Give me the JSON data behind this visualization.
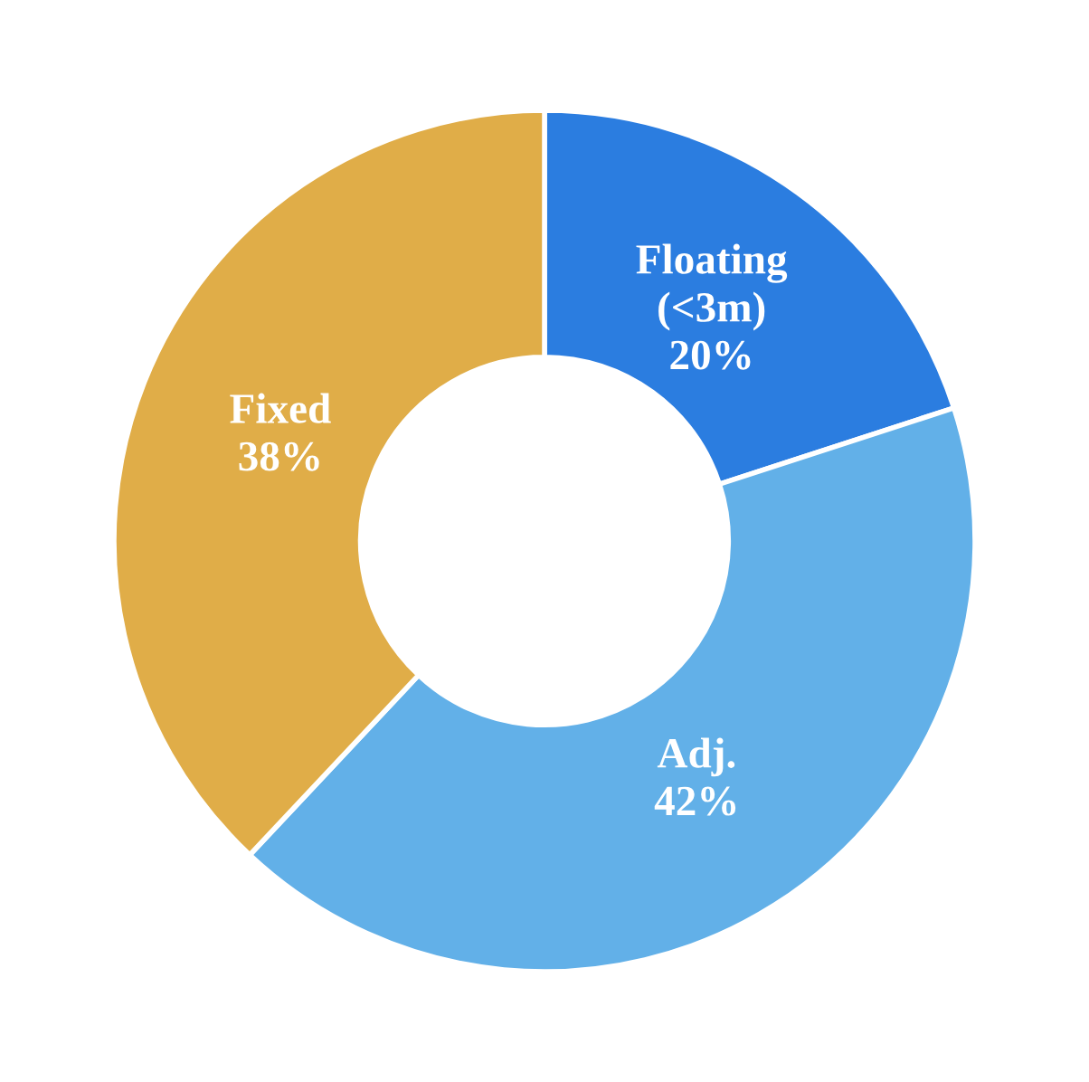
{
  "chart_data": {
    "type": "donut",
    "categories": [
      "Floating\n(<3m)",
      "Adj.",
      "Fixed"
    ],
    "values": [
      20,
      42,
      38
    ],
    "colors": [
      "#2b7de0",
      "#62b0e8",
      "#e0ad48"
    ],
    "value_labels": [
      "20%",
      "42%",
      "38%"
    ]
  }
}
